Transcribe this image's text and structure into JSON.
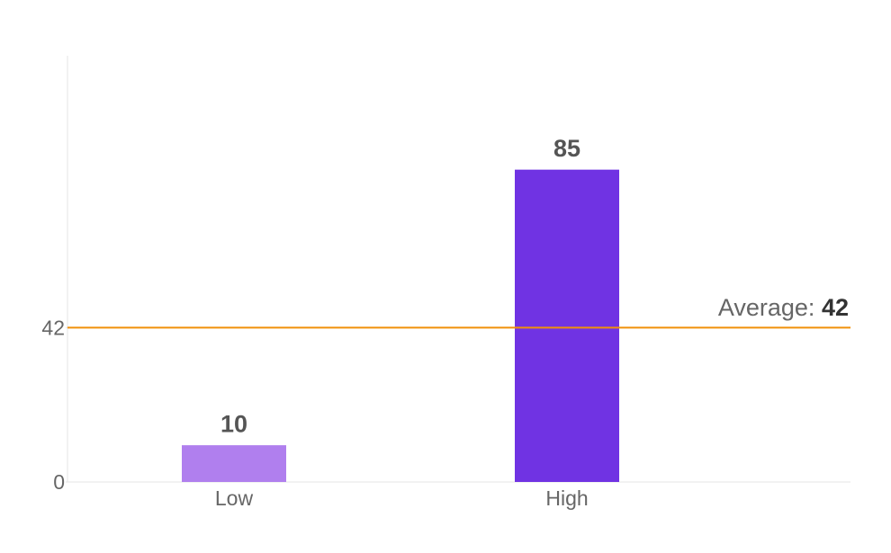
{
  "chart_data": {
    "type": "bar",
    "categories": [
      "Low",
      "High"
    ],
    "values": [
      10,
      85
    ],
    "colors": [
      "#b07fee",
      "#7033e3"
    ],
    "ylim": [
      0,
      116
    ],
    "yticks": [
      0,
      42
    ],
    "average": {
      "label": "Average:",
      "value": 42,
      "color": "#f0900a"
    }
  }
}
